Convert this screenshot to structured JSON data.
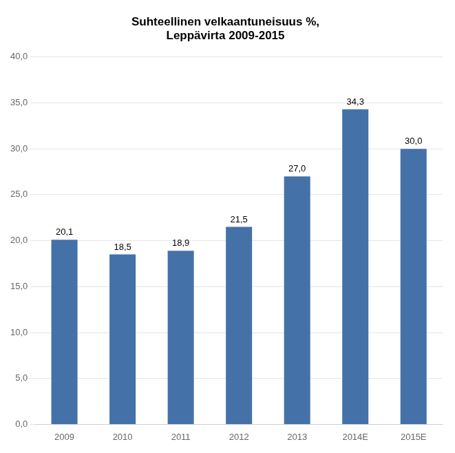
{
  "chart_data": {
    "type": "bar",
    "title": "Suhteellinen velkaantuneisuus %,\nLeppävirta 2009-2015",
    "categories": [
      "2009",
      "2010",
      "2011",
      "2012",
      "2013",
      "2014E",
      "2015E"
    ],
    "values": [
      20.1,
      18.5,
      18.9,
      21.5,
      27.0,
      34.3,
      30.0
    ],
    "value_labels": [
      "20,1",
      "18,5",
      "18,9",
      "21,5",
      "27,0",
      "34,3",
      "30,0"
    ],
    "data_labels": true,
    "color": "#4472a8",
    "ylim": [
      0,
      40
    ],
    "yticks": [
      {
        "value": 0,
        "label": "0,0"
      },
      {
        "value": 5,
        "label": "5,0"
      },
      {
        "value": 10,
        "label": "10,0"
      },
      {
        "value": 15,
        "label": "15,0"
      },
      {
        "value": 20,
        "label": "20,0"
      },
      {
        "value": 25,
        "label": "25,0"
      },
      {
        "value": 30,
        "label": "30,0"
      },
      {
        "value": 35,
        "label": "35,0"
      },
      {
        "value": 40,
        "label": "40,0"
      }
    ],
    "grid": true
  }
}
